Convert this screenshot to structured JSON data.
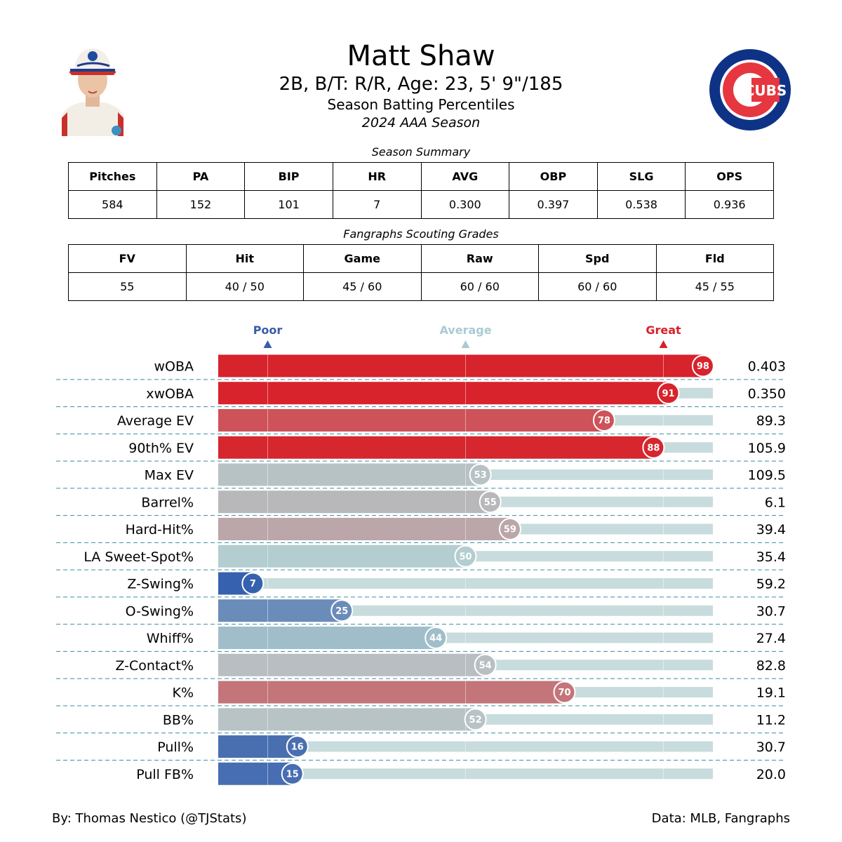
{
  "header": {
    "name": "Matt Shaw",
    "bio": "2B, B/T: R/R, Age: 23, 5' 9\"/185",
    "subtitle": "Season Batting Percentiles",
    "season": "2024 AAA Season",
    "logo_text": "CUBS",
    "logo_colors": {
      "outer": "#0E3386",
      "red": "#E6363F",
      "white": "#ffffff"
    }
  },
  "season_summary": {
    "title": "Season Summary",
    "headers": [
      "Pitches",
      "PA",
      "BIP",
      "HR",
      "AVG",
      "OBP",
      "SLG",
      "OPS"
    ],
    "values": [
      "584",
      "152",
      "101",
      "7",
      "0.300",
      "0.397",
      "0.538",
      "0.936"
    ]
  },
  "scouting": {
    "title": "Fangraphs Scouting Grades",
    "headers": [
      "FV",
      "Hit",
      "Game",
      "Raw",
      "Spd",
      "Fld"
    ],
    "values": [
      "55",
      "40 / 50",
      "45 / 60",
      "60 / 60",
      "60 / 60",
      "45 / 55"
    ]
  },
  "chart_data": {
    "type": "bar",
    "orientation": "horizontal",
    "xlim": [
      0,
      100
    ],
    "reference_markers": [
      {
        "label": "Poor",
        "value": 10,
        "color": "#3A5CAA"
      },
      {
        "label": "Average",
        "value": 50,
        "color": "#A9CBD3"
      },
      {
        "label": "Great",
        "value": 90,
        "color": "#D6212B"
      }
    ],
    "categories": [
      "wOBA",
      "xwOBA",
      "Average EV",
      "90th% EV",
      "Max EV",
      "Barrel%",
      "Hard-Hit%",
      "LA Sweet-Spot%",
      "Z-Swing%",
      "O-Swing%",
      "Whiff%",
      "Z-Contact%",
      "K%",
      "BB%",
      "Pull%",
      "Pull FB%"
    ],
    "percentiles": [
      98,
      91,
      78,
      88,
      53,
      55,
      59,
      50,
      7,
      25,
      44,
      54,
      70,
      52,
      16,
      15
    ],
    "stat_values": [
      "0.403",
      "0.350",
      "89.3",
      "105.9",
      "109.5",
      "6.1",
      "39.4",
      "35.4",
      "59.2",
      "30.7",
      "27.4",
      "82.8",
      "19.1",
      "11.2",
      "30.7",
      "20.0"
    ],
    "bar_colors": [
      "#D7232B",
      "#D8232C",
      "#CE5259",
      "#D6262E",
      "#B7C2C4",
      "#B8B8BA",
      "#BBA6A9",
      "#B3CDD0",
      "#3661AE",
      "#6A8CB9",
      "#A0BECA",
      "#B8BEC2",
      "#C3757A",
      "#B7C3C5",
      "#4A6FB1",
      "#476DB2"
    ],
    "track_color": "#C8DCDD",
    "separator_color": "#3A8CA0"
  },
  "footer": {
    "credit": "By: Thomas Nestico (@TJStats)",
    "source": "Data: MLB, Fangraphs"
  }
}
